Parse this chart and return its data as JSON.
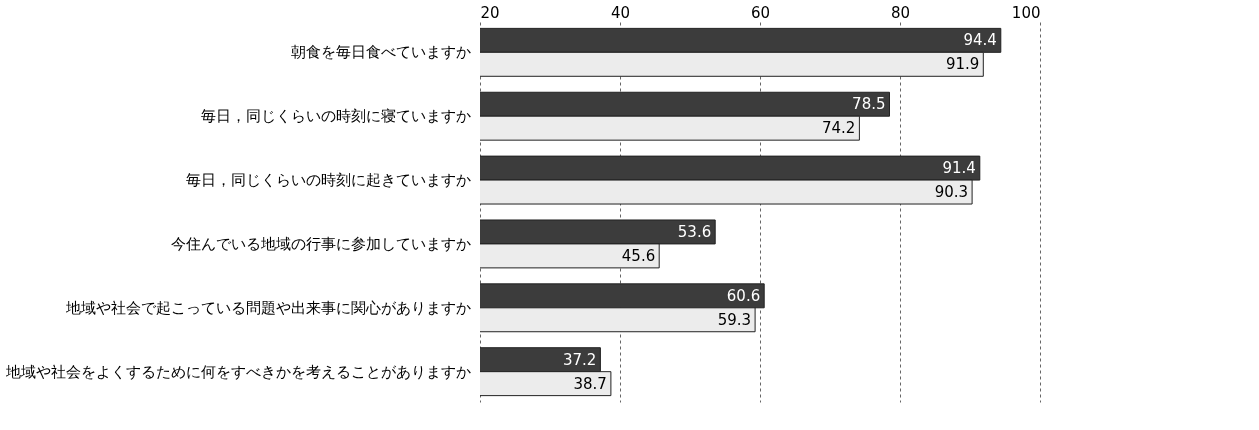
{
  "chart_data": {
    "type": "bar",
    "orientation": "horizontal",
    "categories": [
      "朝食を毎日食べていますか",
      "毎日，同じくらいの時刻に寝ていますか",
      "毎日，同じくらいの時刻に起きていますか",
      "今住んでいる地域の行事に参加していますか",
      "地域や社会で起こっている問題や出来事に関心がありますか",
      "地域や社会をよくするために何をすべきかを考えることがありますか"
    ],
    "series": [
      {
        "color": "#3c3c3c",
        "values": [
          94.4,
          78.5,
          91.4,
          53.6,
          60.6,
          37.2
        ]
      },
      {
        "color": "#ececec",
        "values": [
          91.9,
          74.2,
          90.3,
          45.6,
          59.3,
          38.7
        ]
      }
    ],
    "xlim": [
      20,
      100
    ],
    "xticks": [
      20,
      40,
      60,
      80,
      100
    ],
    "grid": "x",
    "data_labels": true
  }
}
